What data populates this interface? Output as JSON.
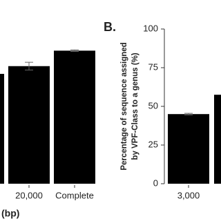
{
  "chart_data": [
    {
      "type": "bar",
      "x_label": "(bp)",
      "categories": [
        null,
        "20,000",
        "Complete"
      ],
      "values": [
        71,
        76,
        86
      ],
      "errors": [
        null,
        2.5,
        0.5
      ],
      "color": "#000000",
      "ylim": [
        0,
        100
      ]
    },
    {
      "type": "bar",
      "title": "B.",
      "y_label": [
        "Percentage of sequence assigned",
        "by VPF-Class to a genus (%)"
      ],
      "categories": [
        "3,000",
        null
      ],
      "values": [
        45,
        57.5
      ],
      "errors": [
        0.5,
        null
      ],
      "color": "#000000",
      "ylim": [
        0,
        100
      ],
      "yticks": [
        0,
        25,
        50,
        75,
        100
      ]
    }
  ]
}
